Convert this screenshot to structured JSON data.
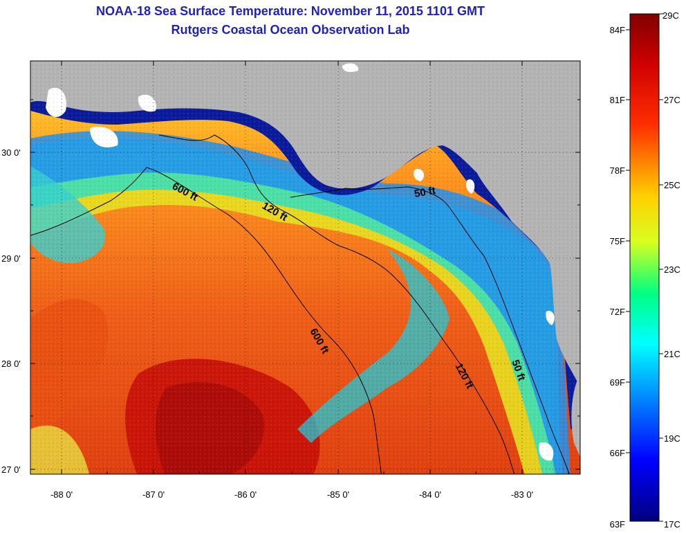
{
  "title": {
    "line1": "NOAA-18 Sea Surface Temperature:  November 11, 2015 1101 GMT",
    "line2": "Rutgers Coastal Ocean Observation Lab"
  },
  "axes": {
    "lat_ticks": [
      "30 0'",
      "29 0'",
      "28 0'",
      "27 0'"
    ],
    "lon_ticks": [
      "-88 0'",
      "-87 0'",
      "-86 0'",
      "-85 0'",
      "-84 0'",
      "-83 0'"
    ]
  },
  "contours": {
    "c600a": "600 ft",
    "c600b": "600 ft",
    "c120a": "120 ft",
    "c120b": "120 ft",
    "c50a": "50 ft",
    "c50b": "50 ft"
  },
  "colorbar": {
    "fahrenheit": [
      "84F",
      "81F",
      "78F",
      "75F",
      "72F",
      "69F",
      "66F",
      "63F"
    ],
    "celsius": [
      "29C",
      "27C",
      "25C",
      "23C",
      "21C",
      "19C",
      "17C"
    ]
  },
  "colors": {
    "land": "#b4b4b4",
    "title": "#1f22b5",
    "deep_water_warm": "#e64a10",
    "coastal_cold": "#0a1b9c"
  }
}
